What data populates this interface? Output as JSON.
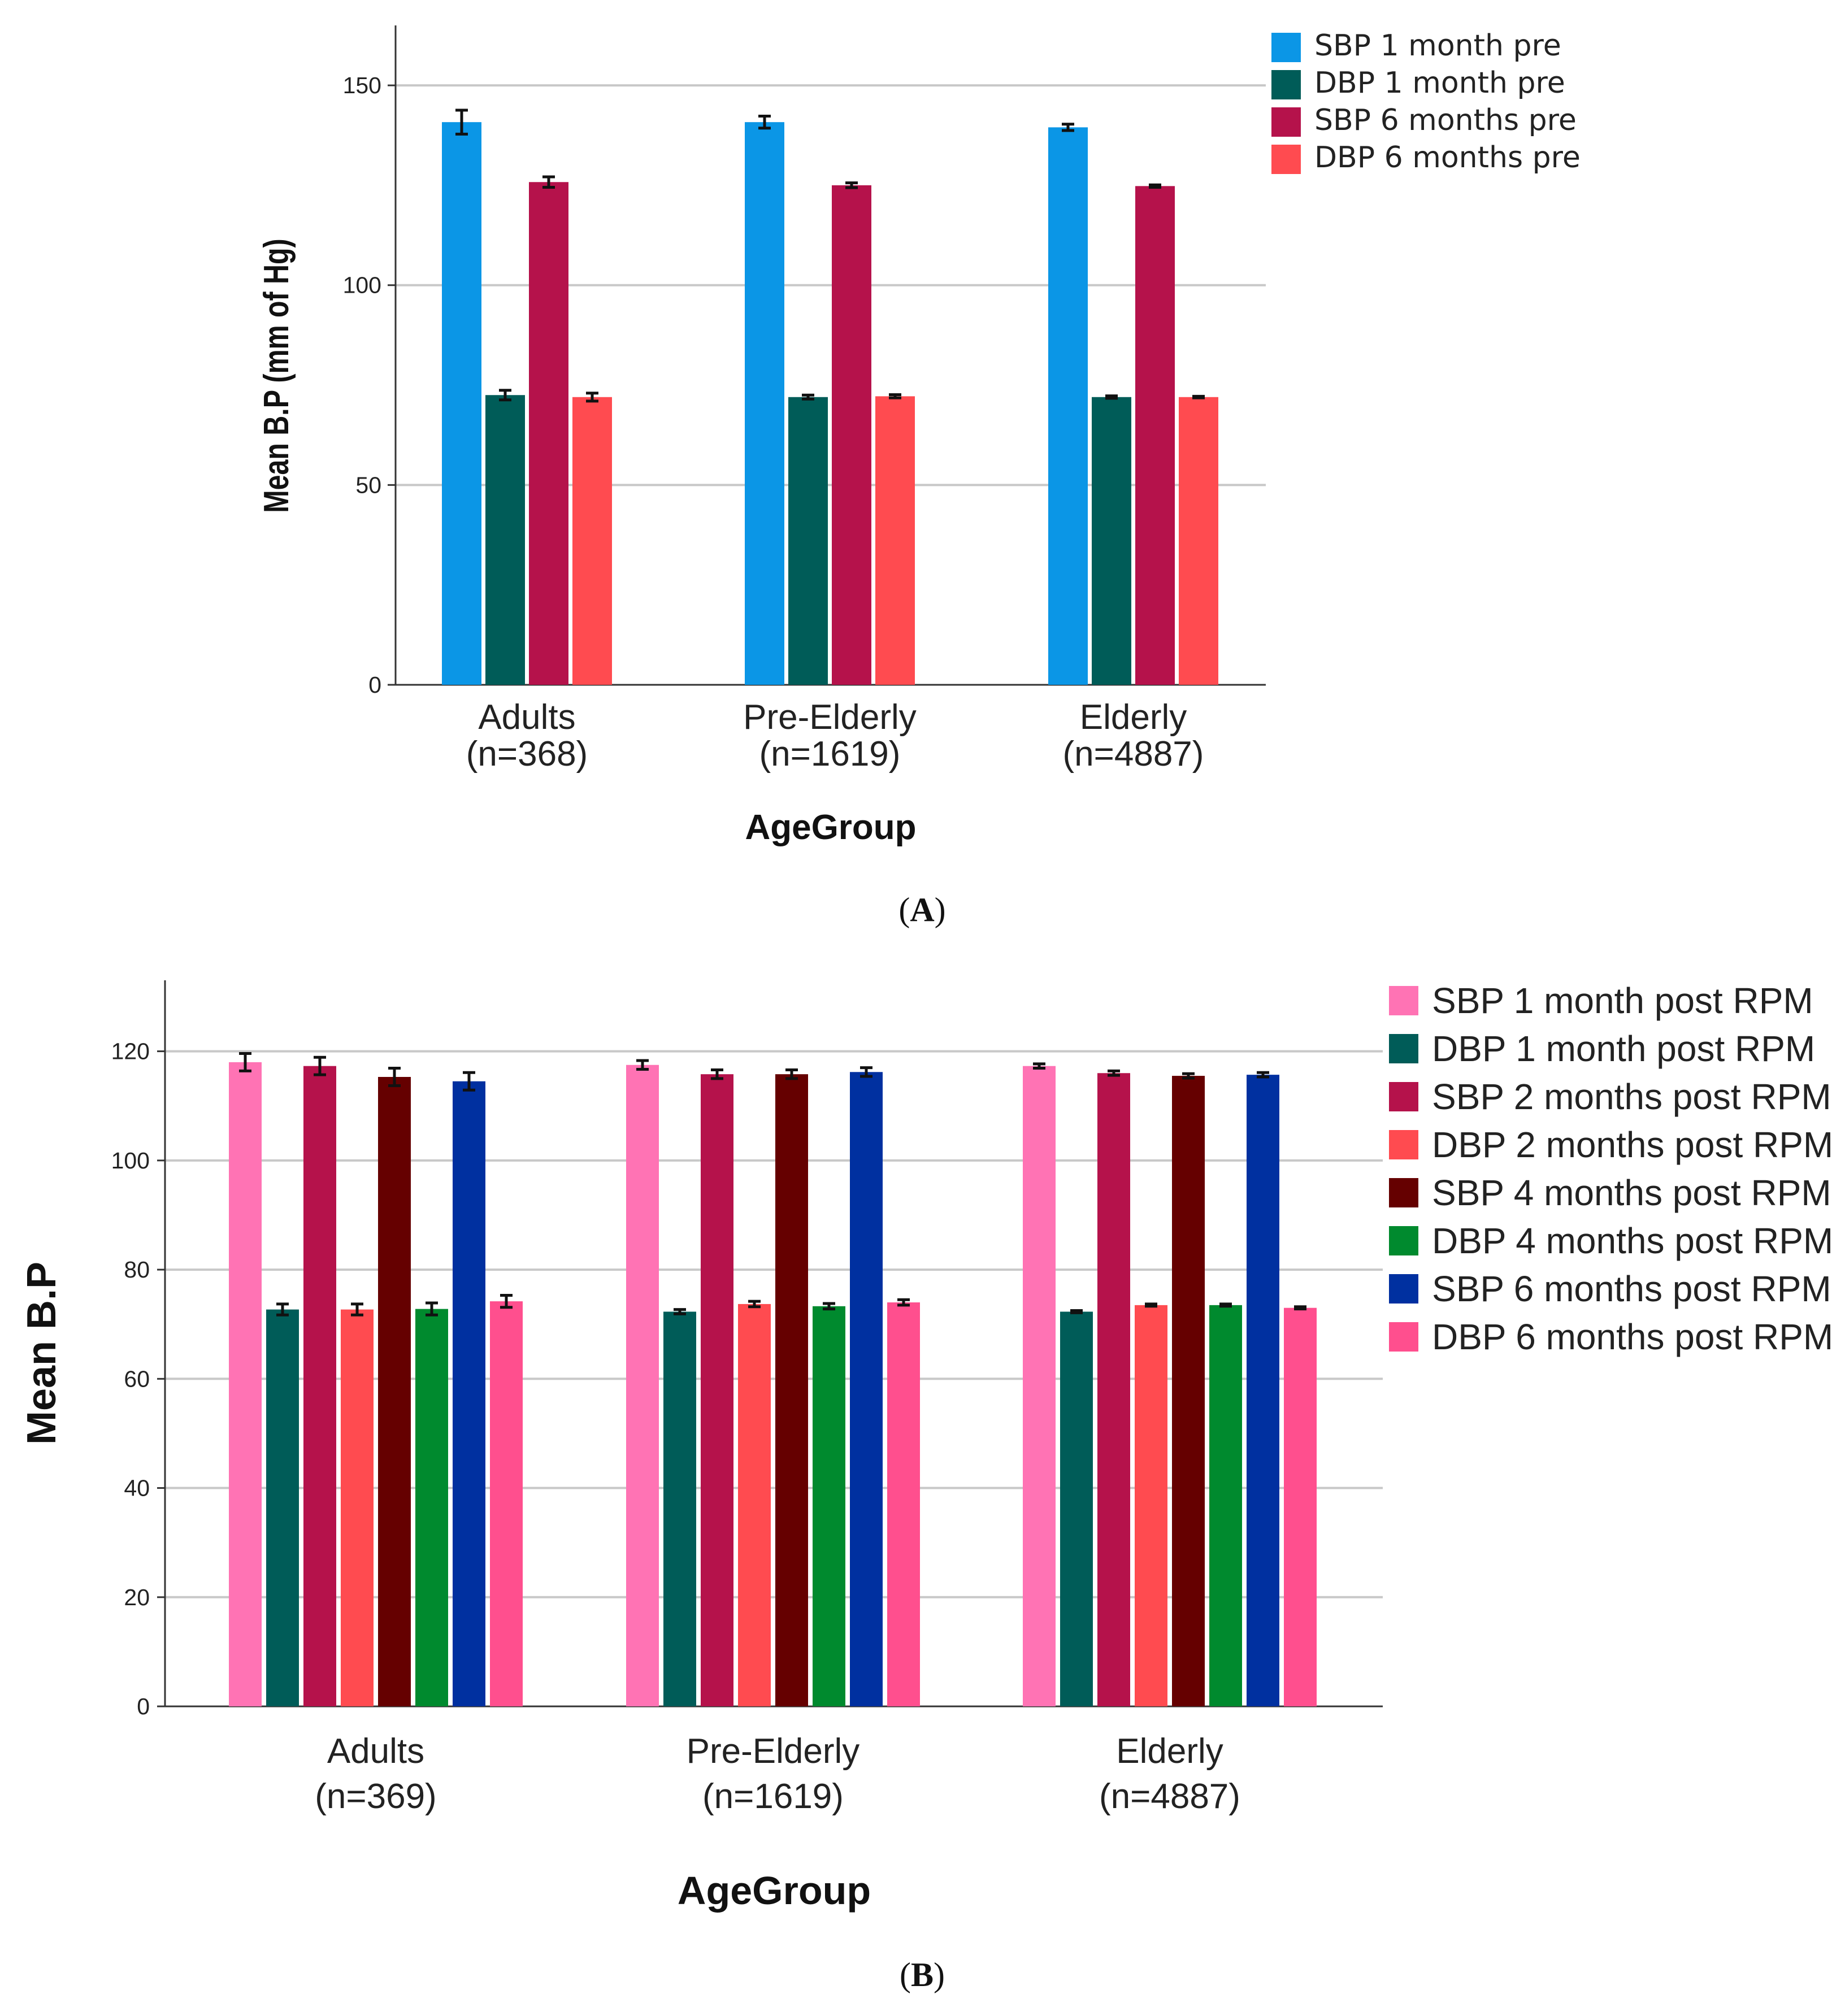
{
  "chart_data": [
    {
      "panel": "A",
      "type": "bar",
      "xlabel": "AgeGroup",
      "ylabel": "Mean B.P (mm of Hg)",
      "ylim": [
        0,
        165
      ],
      "yticks": [
        0,
        50,
        100,
        150
      ],
      "categories": [
        {
          "name": "Adults",
          "n": "(n=368)"
        },
        {
          "name": "Pre-Elderly",
          "n": "(n=1619)"
        },
        {
          "name": "Elderly",
          "n": "(n=4887)"
        }
      ],
      "series": [
        {
          "name": "SBP 1 month pre",
          "color": "#0b96e6",
          "values": [
            140.8,
            140.8,
            139.5
          ],
          "err": [
            3.0,
            1.5,
            0.8
          ]
        },
        {
          "name": "DBP 1 month pre",
          "color": "#005c58",
          "values": [
            72.5,
            72.0,
            72.0
          ],
          "err": [
            1.2,
            0.5,
            0.3
          ]
        },
        {
          "name": "SBP 6 months pre",
          "color": "#b5124b",
          "values": [
            125.8,
            125.0,
            124.8
          ],
          "err": [
            1.3,
            0.6,
            0.3
          ]
        },
        {
          "name": "DBP 6 months pre",
          "color": "#ff4b50",
          "values": [
            72.0,
            72.2,
            72.0
          ],
          "err": [
            1.0,
            0.4,
            0.2
          ]
        }
      ],
      "panel_label": "A"
    },
    {
      "panel": "B",
      "type": "bar",
      "xlabel": "AgeGroup",
      "ylabel": "Mean B.P",
      "ylim": [
        0,
        133
      ],
      "yticks": [
        0,
        20,
        40,
        60,
        80,
        100,
        120
      ],
      "categories": [
        {
          "name": "Adults",
          "n": "(n=369)"
        },
        {
          "name": "Pre-Elderly",
          "n": "(n=1619)"
        },
        {
          "name": "Elderly",
          "n": "(n=4887)"
        }
      ],
      "series": [
        {
          "name": "SBP 1 month post RPM",
          "color": "#ff73b4",
          "values": [
            118.0,
            117.5,
            117.3
          ],
          "err": [
            1.6,
            0.8,
            0.4
          ]
        },
        {
          "name": "DBP 1 month post RPM",
          "color": "#005c58",
          "values": [
            72.7,
            72.3,
            72.3
          ],
          "err": [
            1.0,
            0.4,
            0.2
          ]
        },
        {
          "name": "SBP 2 months post RPM",
          "color": "#b5124b",
          "values": [
            117.3,
            115.8,
            116.0
          ],
          "err": [
            1.6,
            0.8,
            0.4
          ]
        },
        {
          "name": "DBP 2 months post RPM",
          "color": "#ff4b50",
          "values": [
            72.7,
            73.7,
            73.5
          ],
          "err": [
            1.0,
            0.5,
            0.2
          ]
        },
        {
          "name": "SBP 4 months post RPM",
          "color": "#650000",
          "values": [
            115.3,
            115.8,
            115.5
          ],
          "err": [
            1.6,
            0.8,
            0.4
          ]
        },
        {
          "name": "DBP 4 months post RPM",
          "color": "#008a2e",
          "values": [
            72.8,
            73.3,
            73.5
          ],
          "err": [
            1.1,
            0.5,
            0.2
          ]
        },
        {
          "name": "SBP 6 months post RPM",
          "color": "#0030a0",
          "values": [
            114.5,
            116.2,
            115.7
          ],
          "err": [
            1.6,
            0.8,
            0.4
          ]
        },
        {
          "name": "DBP 6 months post RPM",
          "color": "#ff4f8e",
          "values": [
            74.2,
            74.0,
            73.0
          ],
          "err": [
            1.1,
            0.5,
            0.2
          ]
        }
      ],
      "panel_label": "B"
    }
  ]
}
